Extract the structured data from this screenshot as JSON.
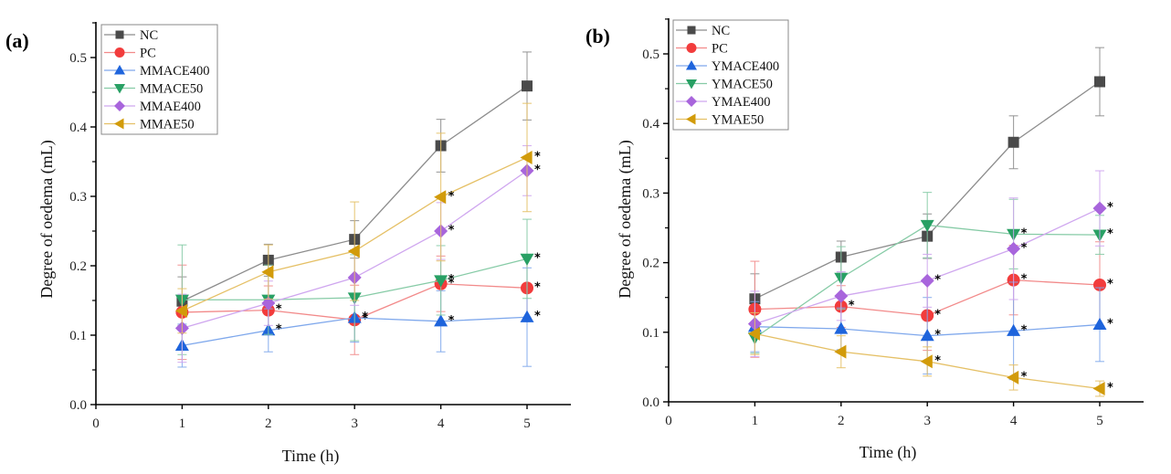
{
  "chart_data": [
    {
      "type": "line",
      "panel_label": "(a)",
      "xlabel": "Time (h)",
      "ylabel": "Degree of oedema (mL)",
      "x": [
        1,
        2,
        3,
        4,
        5
      ],
      "xlim": [
        0,
        5.5
      ],
      "ylim": [
        0,
        0.55
      ],
      "xticks": [
        "0",
        "1",
        "2",
        "3",
        "4",
        "5"
      ],
      "yticks": [
        "0.0",
        "0.1",
        "0.2",
        "0.3",
        "0.4",
        "0.5"
      ],
      "legend_position": "top-left",
      "grid": false,
      "series": [
        {
          "name": "NC",
          "marker": "square",
          "color": "#4a4a4a",
          "line_color": "#8c8c8c",
          "values": [
            0.149,
            0.208,
            0.238,
            0.373,
            0.459
          ],
          "errors": [
            0.035,
            0.023,
            0.027,
            0.038,
            0.049
          ],
          "significant": [
            false,
            false,
            false,
            false,
            false
          ]
        },
        {
          "name": "PC",
          "marker": "circle",
          "color": "#f23c3c",
          "line_color": "#f28a8a",
          "values": [
            0.133,
            0.136,
            0.122,
            0.174,
            0.168
          ],
          "errors": [
            0.068,
            0.035,
            0.05,
            0.04,
            0.045
          ],
          "significant": [
            false,
            true,
            true,
            true,
            true
          ]
        },
        {
          "name": "MMACE400",
          "marker": "triangle-up",
          "color": "#1e64dc",
          "line_color": "#7fa8ec",
          "values": [
            0.085,
            0.107,
            0.125,
            0.12,
            0.126
          ],
          "errors": [
            0.031,
            0.031,
            0.035,
            0.044,
            0.071
          ],
          "significant": [
            false,
            true,
            true,
            true,
            true
          ]
        },
        {
          "name": "MMACE50",
          "marker": "triangle-down",
          "color": "#28a064",
          "line_color": "#86cba6",
          "values": [
            0.151,
            0.151,
            0.154,
            0.179,
            0.21
          ],
          "errors": [
            0.079,
            0.05,
            0.062,
            0.05,
            0.057
          ],
          "significant": [
            false,
            false,
            false,
            true,
            true
          ]
        },
        {
          "name": "MMAE400",
          "marker": "diamond",
          "color": "#a865dc",
          "line_color": "#cfa6ef",
          "values": [
            0.11,
            0.146,
            0.183,
            0.25,
            0.337
          ],
          "errors": [
            0.049,
            0.032,
            0.04,
            0.041,
            0.036
          ],
          "significant": [
            false,
            false,
            false,
            true,
            true
          ]
        },
        {
          "name": "MMAE50",
          "marker": "triangle-left",
          "color": "#d29b0a",
          "line_color": "#e5c066",
          "values": [
            0.135,
            0.191,
            0.221,
            0.299,
            0.356
          ],
          "errors": [
            0.032,
            0.039,
            0.071,
            0.092,
            0.078
          ],
          "significant": [
            false,
            false,
            false,
            true,
            true
          ]
        }
      ]
    },
    {
      "type": "line",
      "panel_label": "(b)",
      "xlabel": "Time (h)",
      "ylabel": "Degree of oedema (mL)",
      "x": [
        1,
        2,
        3,
        4,
        5
      ],
      "xlim": [
        0,
        5.5
      ],
      "ylim": [
        0,
        0.55
      ],
      "xticks": [
        "0",
        "1",
        "2",
        "3",
        "4",
        "5"
      ],
      "yticks": [
        "0.0",
        "0.1",
        "0.2",
        "0.3",
        "0.4",
        "0.5"
      ],
      "legend_position": "top-left",
      "grid": false,
      "series": [
        {
          "name": "NC",
          "marker": "square",
          "color": "#4a4a4a",
          "line_color": "#8c8c8c",
          "values": [
            0.148,
            0.208,
            0.238,
            0.373,
            0.46
          ],
          "errors": [
            0.036,
            0.023,
            0.032,
            0.038,
            0.049
          ],
          "significant": [
            false,
            false,
            false,
            false,
            false
          ]
        },
        {
          "name": "PC",
          "marker": "circle",
          "color": "#f23c3c",
          "line_color": "#f28a8a",
          "values": [
            0.133,
            0.137,
            0.124,
            0.175,
            0.168
          ],
          "errors": [
            0.069,
            0.03,
            0.05,
            0.05,
            0.062
          ],
          "significant": [
            false,
            true,
            true,
            true,
            true
          ]
        },
        {
          "name": "YMACE400",
          "marker": "triangle-up",
          "color": "#1e64dc",
          "line_color": "#7fa8ec",
          "values": [
            0.108,
            0.105,
            0.095,
            0.102,
            0.111
          ],
          "errors": [
            0.036,
            0.03,
            0.055,
            0.07,
            0.053
          ],
          "significant": [
            false,
            false,
            true,
            true,
            true
          ]
        },
        {
          "name": "YMACE50",
          "marker": "triangle-down",
          "color": "#28a064",
          "line_color": "#86cba6",
          "values": [
            0.092,
            0.178,
            0.254,
            0.241,
            0.24
          ],
          "errors": [
            0.022,
            0.045,
            0.047,
            0.05,
            0.028
          ],
          "significant": [
            false,
            false,
            false,
            true,
            true
          ]
        },
        {
          "name": "YMAE400",
          "marker": "diamond",
          "color": "#a865dc",
          "line_color": "#cfa6ef",
          "values": [
            0.112,
            0.152,
            0.174,
            0.22,
            0.278
          ],
          "errors": [
            0.047,
            0.035,
            0.038,
            0.073,
            0.054
          ],
          "significant": [
            false,
            false,
            true,
            true,
            true
          ]
        },
        {
          "name": "YMAE50",
          "marker": "triangle-left",
          "color": "#d29b0a",
          "line_color": "#e5c066",
          "values": [
            0.098,
            0.072,
            0.058,
            0.035,
            0.019
          ],
          "errors": [
            0.03,
            0.023,
            0.021,
            0.018,
            0.011
          ],
          "significant": [
            false,
            false,
            true,
            true,
            true
          ]
        }
      ]
    }
  ]
}
